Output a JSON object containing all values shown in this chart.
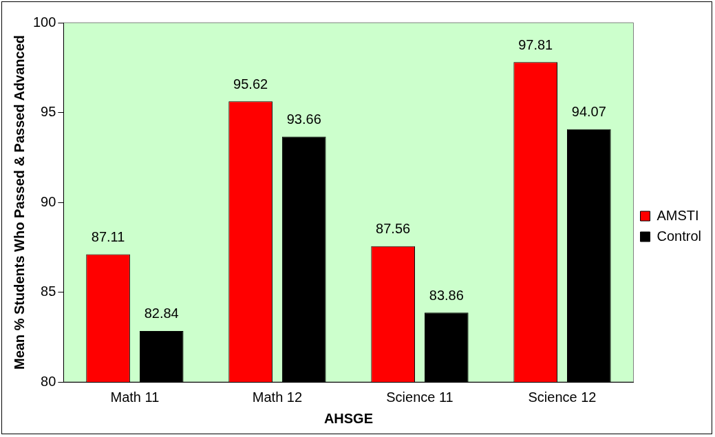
{
  "chart_data": {
    "type": "bar",
    "xlabel": "AHSGE",
    "ylabel": "Mean % Students Who Passed & Passed Advanced",
    "categories": [
      "Math 11",
      "Math 12",
      "Science 11",
      "Science 12"
    ],
    "series": [
      {
        "name": "AMSTI",
        "color": "#ff0000",
        "values": [
          87.11,
          95.62,
          87.56,
          97.81
        ]
      },
      {
        "name": "Control",
        "color": "#000000",
        "values": [
          82.84,
          93.66,
          83.86,
          94.07
        ]
      }
    ],
    "ylim": [
      80,
      100
    ],
    "yticks": [
      80,
      85,
      90,
      95,
      100
    ],
    "grid": false,
    "legend": "right",
    "data_labels": true
  }
}
